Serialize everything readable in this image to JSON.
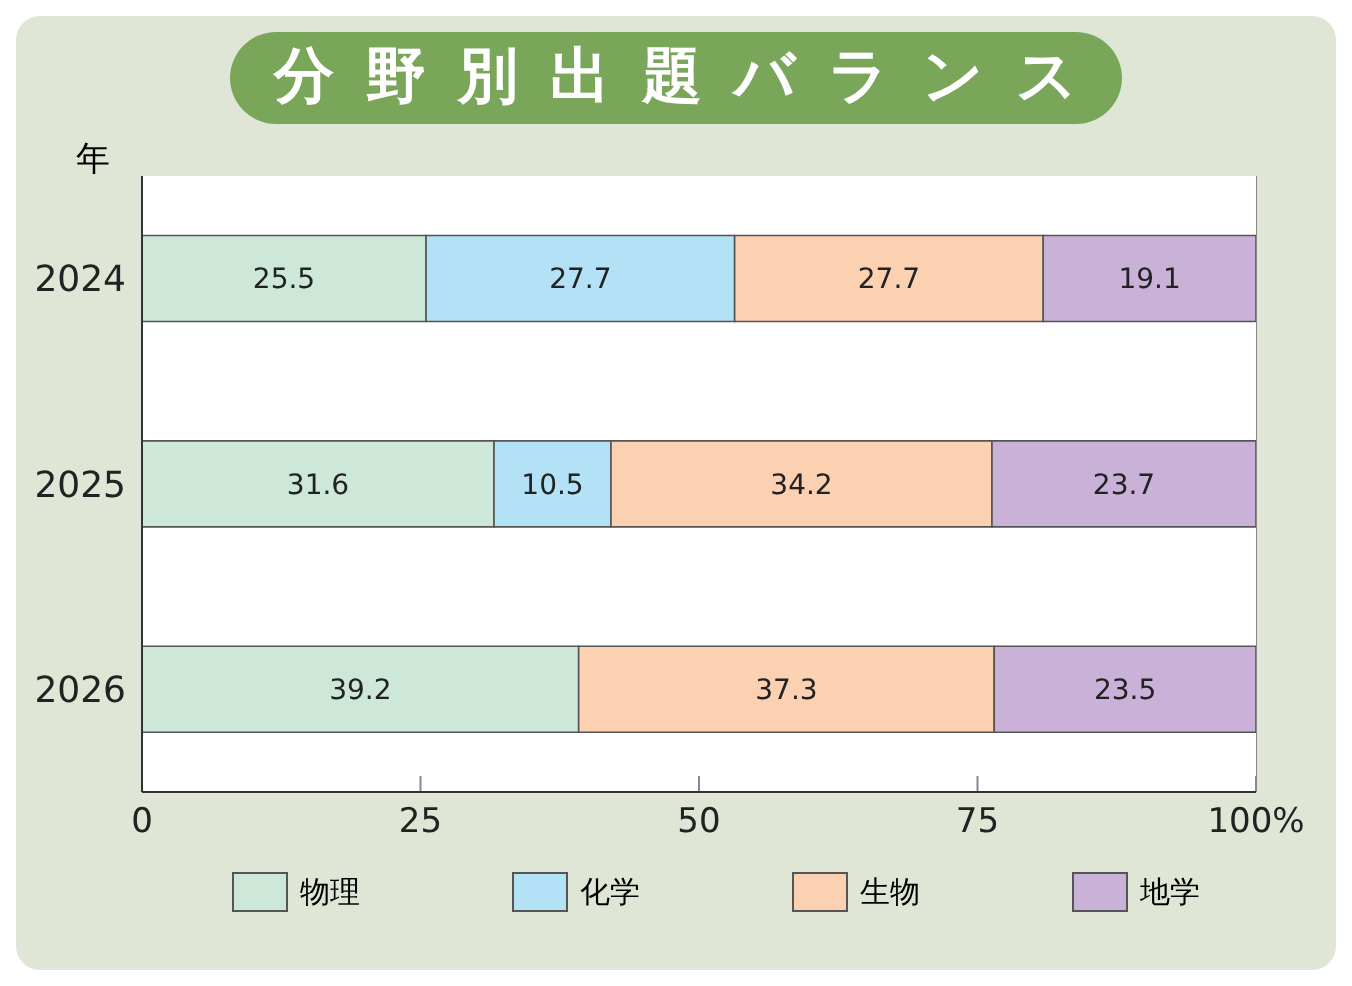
{
  "chart_data": {
    "type": "bar",
    "orientation": "horizontal",
    "stacked": true,
    "title": "分野別出題バランス",
    "ylabel": "年",
    "categories": [
      "2024",
      "2025",
      "2026"
    ],
    "series": [
      {
        "name": "物理",
        "color": "#cde8d8",
        "values": [
          25.5,
          31.6,
          39.2
        ]
      },
      {
        "name": "化学",
        "color": "#b3e1f6",
        "values": [
          27.7,
          10.5,
          null
        ]
      },
      {
        "name": "生物",
        "color": "#fcd1b2",
        "values": [
          27.7,
          34.2,
          37.3
        ]
      },
      {
        "name": "地学",
        "color": "#c9b1d8",
        "values": [
          19.1,
          23.7,
          23.5
        ]
      }
    ],
    "xlim": [
      0,
      100
    ],
    "xticks": [
      0,
      25,
      50,
      75,
      {
        "value": 100,
        "label": "100%"
      }
    ],
    "grid": "x",
    "legend": "bottom",
    "data_labels": true
  }
}
